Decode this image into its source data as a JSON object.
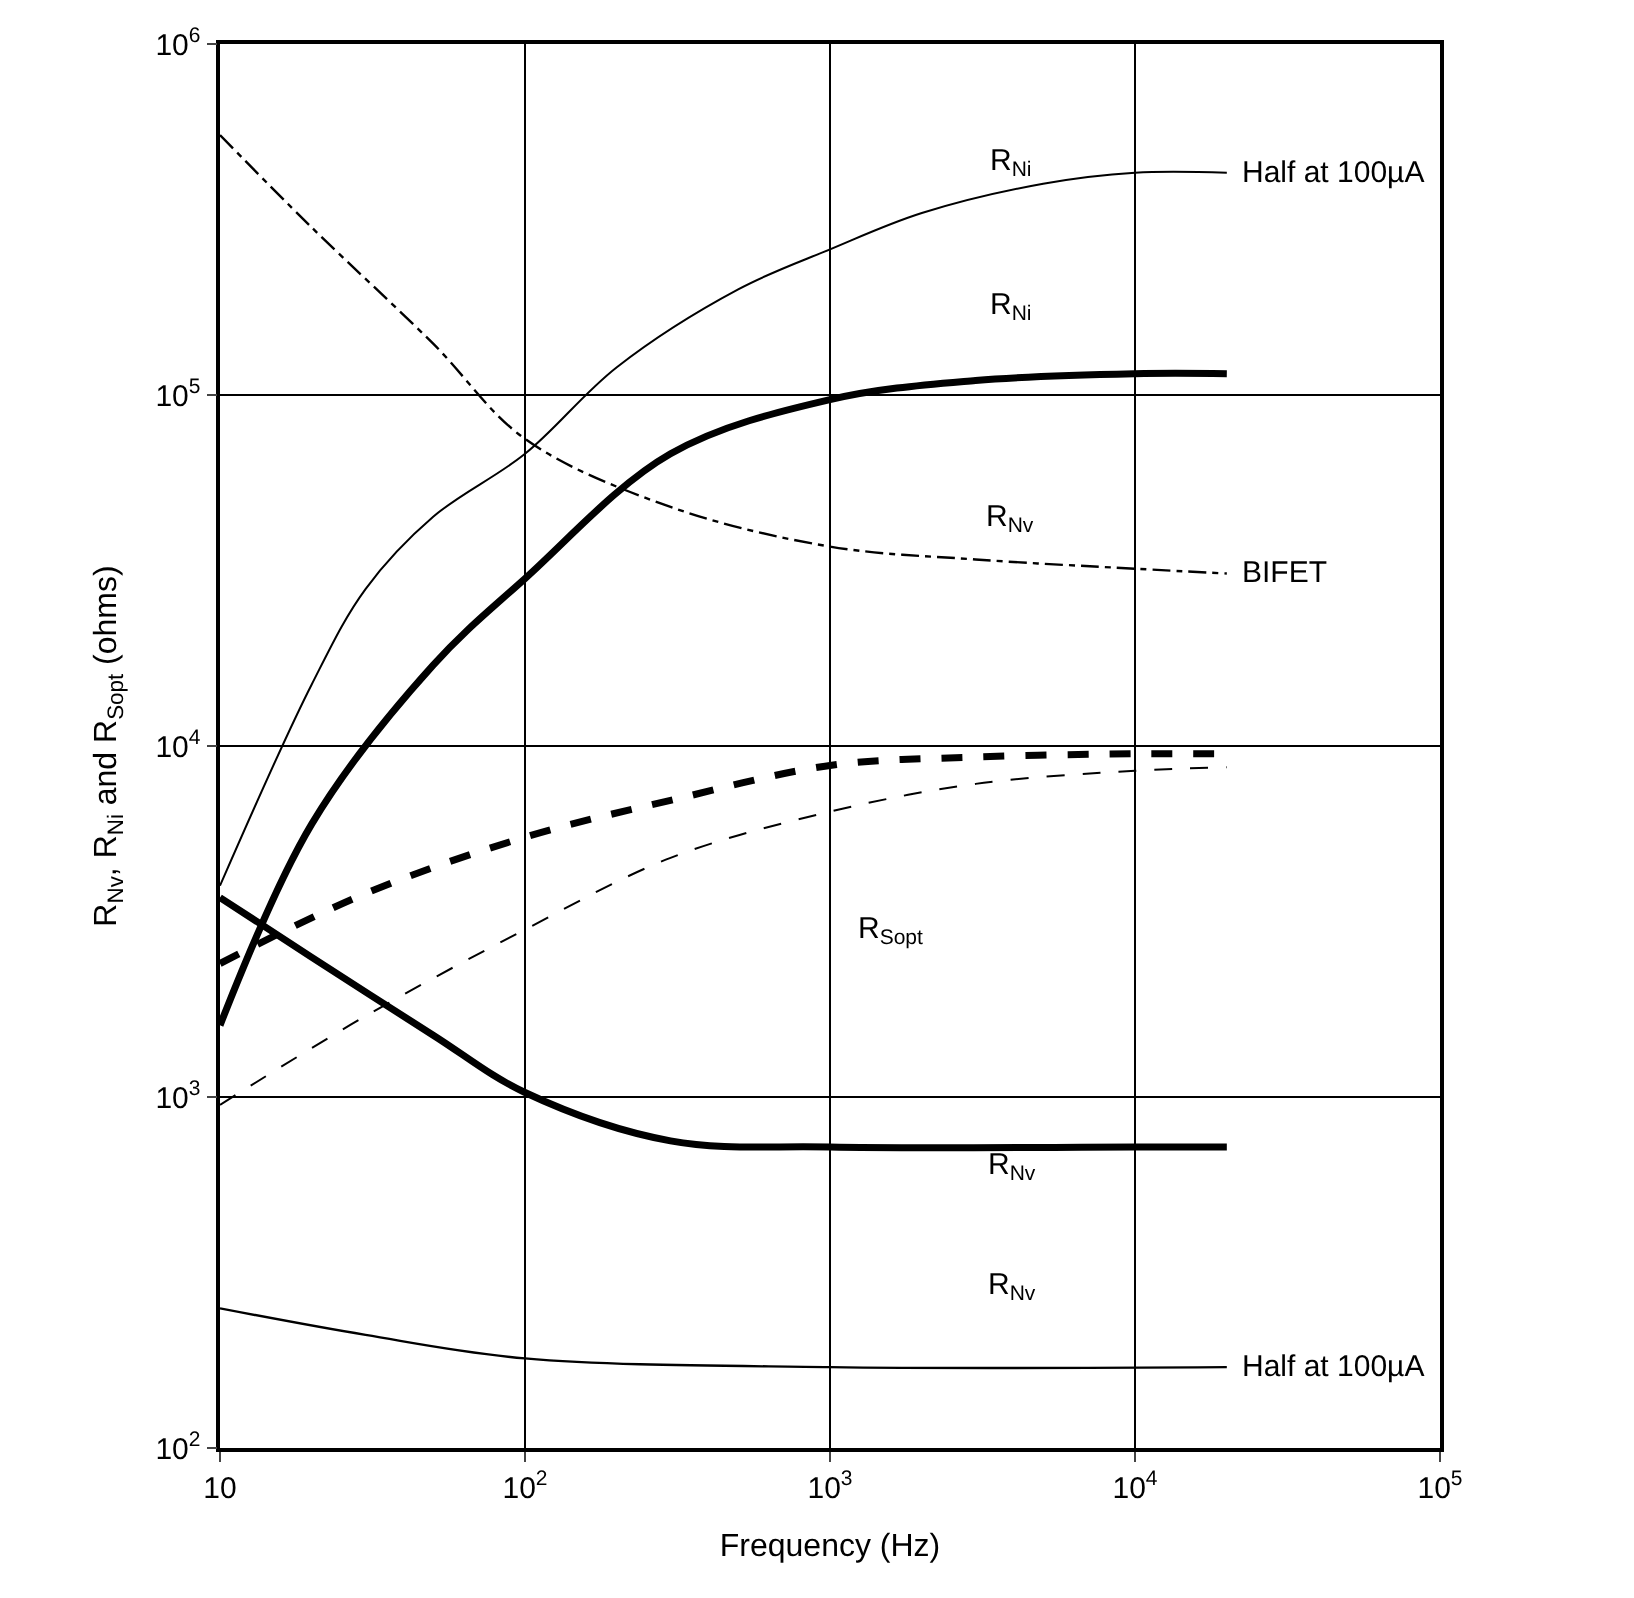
{
  "chart_data": {
    "type": "line",
    "xlabel": "Frequency (Hz)",
    "ylabel": "R$_{Nv}$, R$_{Ni}$ and R$_{Sopt}$ (ohms)",
    "log": "xy",
    "grid": true,
    "legend": false,
    "marker": "none",
    "xlim": [
      10,
      100000
    ],
    "xticks": [
      10,
      {
        "value": 100,
        "label": "10$^{2}$"
      },
      {
        "value": 1000,
        "label": "10$^{3}$"
      },
      {
        "value": 10000,
        "label": "10$^{4}$"
      },
      {
        "value": 100000,
        "label": "10$^{5}$"
      }
    ],
    "ylim": [
      100,
      1000000
    ],
    "yticks": [
      {
        "value": 100,
        "label": "10$^{2}$"
      },
      {
        "value": 1000,
        "label": "10$^{3}$"
      },
      {
        "value": 10000,
        "label": "10$^{4}$"
      },
      {
        "value": 100000,
        "label": "10$^{5}$"
      },
      {
        "value": 1000000,
        "label": "10$^{6}$"
      }
    ],
    "series": [
      {
        "name": "Half at 100µA",
        "color": "#000000",
        "line_style": "solid",
        "x": [
          10,
          20,
          30,
          50,
          100,
          200,
          500,
          1000,
          2000,
          5000,
          10000,
          20000
        ],
        "values": [
          4000,
          15000,
          28000,
          45000,
          68000,
          120000,
          200000,
          260000,
          330000,
          400000,
          430000,
          430000
        ]
      },
      {
        "color": "#000000",
        "line_style": "solid",
        "x": [
          10,
          20,
          50,
          100,
          300,
          1000,
          3000,
          10000,
          20000
        ],
        "values": [
          1600,
          6000,
          17000,
          30000,
          68000,
          97000,
          110000,
          115000,
          115000
        ]
      },
      {
        "name": "BIFET",
        "color": "#000000",
        "line_style": "dashdot",
        "x": [
          10,
          20,
          50,
          100,
          300,
          1000,
          3000,
          10000,
          20000
        ],
        "values": [
          550000,
          300000,
          140000,
          75000,
          48000,
          37000,
          34000,
          32000,
          31000
        ]
      },
      {
        "color": "#000000",
        "line_style": "dashed",
        "x": [
          10,
          30,
          100,
          300,
          1000,
          3000,
          10000,
          20000
        ],
        "values": [
          2400,
          3800,
          5500,
          7000,
          8800,
          9300,
          9500,
          9500
        ]
      },
      {
        "color": "#000000",
        "line_style": "dashed",
        "x": [
          10,
          30,
          100,
          300,
          1000,
          3000,
          10000,
          20000
        ],
        "values": [
          950,
          1700,
          3000,
          4800,
          6500,
          7800,
          8500,
          8700
        ]
      },
      {
        "color": "#000000",
        "line_style": "solid",
        "x": [
          10,
          20,
          50,
          100,
          300,
          1000,
          10000,
          20000
        ],
        "values": [
          3700,
          2500,
          1500,
          1030,
          750,
          720,
          720,
          720
        ]
      },
      {
        "name": "Half at 100µA",
        "color": "#000000",
        "line_style": "solid",
        "x": [
          10,
          30,
          100,
          1000,
          20000
        ],
        "values": [
          250,
          210,
          180,
          170,
          170
        ]
      }
    ],
    "annotations": [
      "R$_{Ni}$",
      "R$_{Ni}$",
      "R$_{Nv}$",
      "R$_{Sopt}$",
      "R$_{Nv}$",
      "R$_{Nv}$"
    ]
  }
}
